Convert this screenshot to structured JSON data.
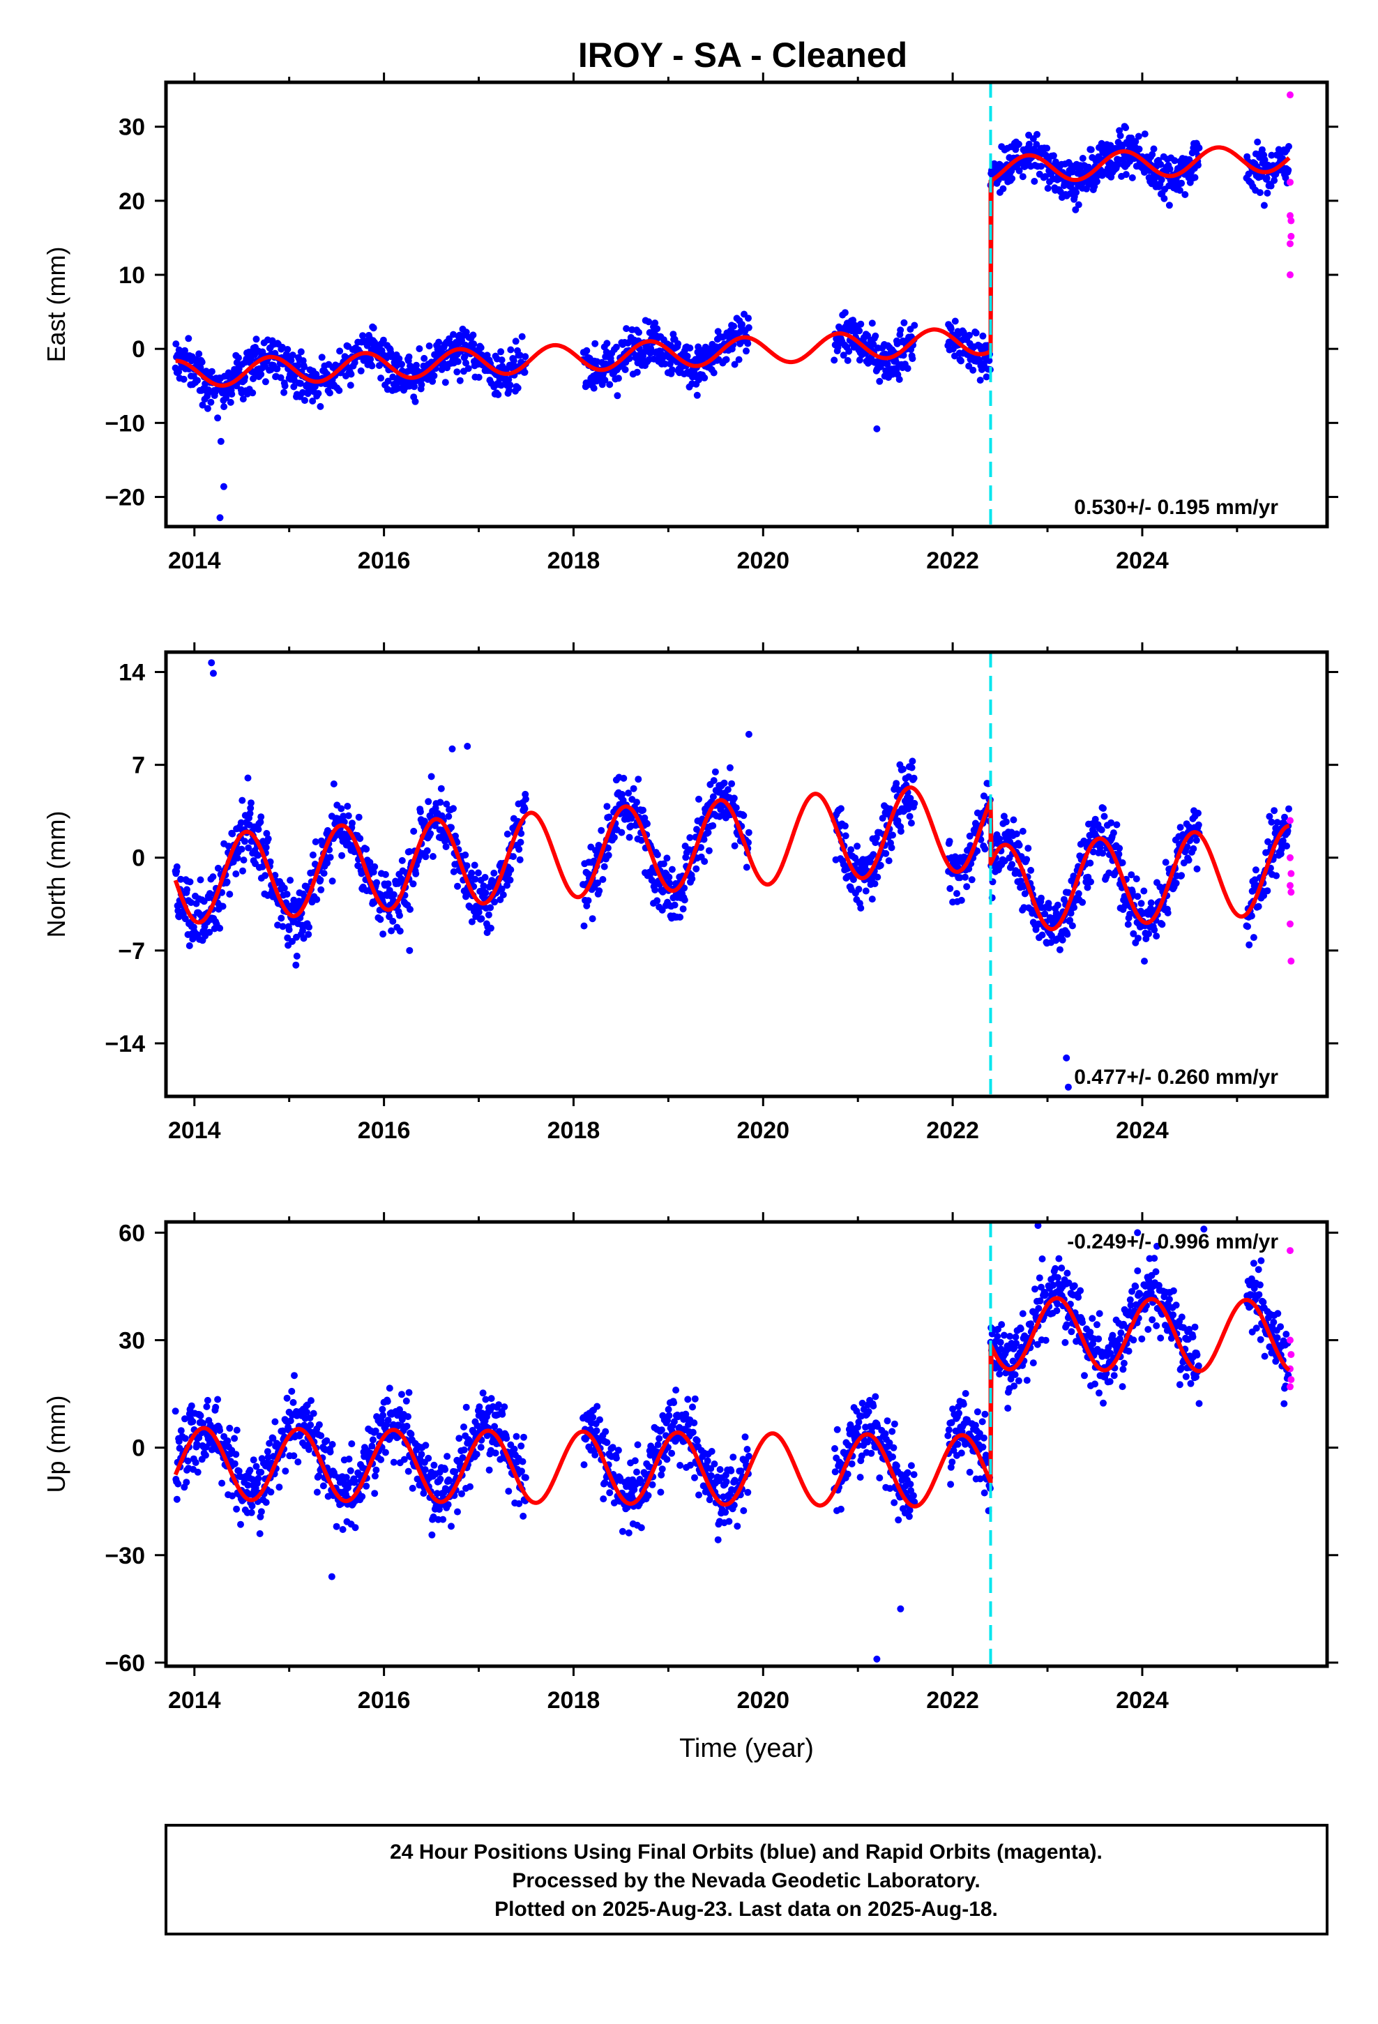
{
  "title": "IROY  - SA - Cleaned",
  "colors": {
    "final": "#0000ff",
    "rapid": "#ff00ff",
    "model": "#ff0000",
    "offset": "#00e5ee",
    "frame": "#000000"
  },
  "x_ticks": [
    "2014",
    "2016",
    "2018",
    "2020",
    "2022",
    "2024"
  ],
  "footer": {
    "line1": "24 Hour Positions Using Final Orbits (blue) and Rapid Orbits (magenta).",
    "line2": "Processed by the Nevada Geodetic Laboratory.",
    "line3": "Plotted on 2025-Aug-23. Last data on 2025-Aug-18."
  },
  "chart_data": [
    {
      "type": "scatter",
      "ylabel": "East (mm)",
      "xlabel": "",
      "xlim": [
        2013.7,
        2025.95
      ],
      "ylim": [
        -24,
        36
      ],
      "y_ticks": [
        -20,
        -10,
        0,
        10,
        20,
        30
      ],
      "rate_label": "0.530+/- 0.195 mm/yr",
      "offset_epoch": 2022.4,
      "data_segments": [
        [
          2013.8,
          2017.5
        ],
        [
          2018.1,
          2019.85
        ],
        [
          2020.75,
          2021.6
        ],
        [
          2021.95,
          2022.4
        ],
        [
          2022.4,
          2024.6
        ],
        [
          2025.1,
          2025.55
        ]
      ],
      "model": {
        "pre_level": -1.2,
        "post_level": 21.8,
        "trend": 0.53,
        "ann_amp": 1.8,
        "ann_phase": 0.55,
        "ref_epoch": 2018.0
      },
      "scatter_sd": 1.5,
      "final_points": [
        [
          2014.28,
          -12.5
        ],
        [
          2014.31,
          -18.6
        ],
        [
          2014.27,
          -22.8
        ],
        [
          2021.2,
          -10.8
        ]
      ],
      "rapid_points": [
        [
          2025.56,
          34.3
        ],
        [
          2025.56,
          22.5
        ],
        [
          2025.56,
          18.0
        ],
        [
          2025.57,
          17.3
        ],
        [
          2025.56,
          14.2
        ],
        [
          2025.57,
          15.2
        ],
        [
          2025.56,
          10.0
        ]
      ]
    },
    {
      "type": "scatter",
      "ylabel": "North (mm)",
      "xlabel": "",
      "xlim": [
        2013.7,
        2025.95
      ],
      "ylim": [
        -18,
        15.5
      ],
      "y_ticks": [
        -14,
        -7,
        0,
        7,
        14
      ],
      "rate_label": "0.477+/- 0.260 mm/yr",
      "offset_epoch": 2022.4,
      "data_segments": [
        [
          2013.8,
          2017.5
        ],
        [
          2018.1,
          2019.85
        ],
        [
          2020.75,
          2021.6
        ],
        [
          2021.95,
          2022.4
        ],
        [
          2022.4,
          2024.6
        ],
        [
          2025.1,
          2025.55
        ]
      ],
      "model": {
        "pre_level": 0.3,
        "post_level": -4.5,
        "trend": 0.477,
        "ann_amp": 3.3,
        "ann_phase": 0.3,
        "ref_epoch": 2018.0
      },
      "scatter_sd": 1.2,
      "final_points": [
        [
          2014.18,
          14.7
        ],
        [
          2014.2,
          13.9
        ],
        [
          2016.27,
          -7.0
        ],
        [
          2018.2,
          -4.6
        ],
        [
          2023.2,
          -15.1
        ],
        [
          2023.22,
          -17.3
        ],
        [
          2016.72,
          8.2
        ],
        [
          2016.88,
          8.4
        ],
        [
          2019.85,
          9.3
        ]
      ],
      "rapid_points": [
        [
          2025.56,
          2.8
        ],
        [
          2025.56,
          0.0
        ],
        [
          2025.57,
          -1.2
        ],
        [
          2025.56,
          -2.1
        ],
        [
          2025.57,
          -2.6
        ],
        [
          2025.56,
          -5.0
        ],
        [
          2025.57,
          -7.8
        ]
      ]
    },
    {
      "type": "scatter",
      "ylabel": "Up (mm)",
      "xlabel": "Time (year)",
      "xlim": [
        2013.7,
        2025.95
      ],
      "ylim": [
        -61,
        63
      ],
      "y_ticks": [
        -60,
        -30,
        0,
        30,
        60
      ],
      "rate_label": "-0.249+/- 0.996 mm/yr",
      "offset_epoch": 2022.4,
      "data_segments": [
        [
          2013.8,
          2017.5
        ],
        [
          2018.1,
          2019.85
        ],
        [
          2020.75,
          2021.6
        ],
        [
          2021.95,
          2022.4
        ],
        [
          2022.4,
          2024.6
        ],
        [
          2025.1,
          2025.55
        ]
      ],
      "model": {
        "pre_level": -5.5,
        "post_level": 33.0,
        "trend": -0.249,
        "ann_amp": 10.0,
        "ann_phase": 0.85,
        "ref_epoch": 2018.0
      },
      "scatter_sd": 5.0,
      "final_points": [
        [
          2021.2,
          -59.0
        ],
        [
          2021.45,
          -45.0
        ],
        [
          2015.45,
          -36.0
        ],
        [
          2022.9,
          62.0
        ],
        [
          2024.65,
          61.0
        ],
        [
          2023.95,
          60.0
        ]
      ],
      "rapid_points": [
        [
          2025.56,
          55.0
        ],
        [
          2025.56,
          30.0
        ],
        [
          2025.57,
          26.0
        ],
        [
          2025.56,
          22.0
        ],
        [
          2025.57,
          19.0
        ],
        [
          2025.56,
          17.0
        ]
      ]
    }
  ]
}
